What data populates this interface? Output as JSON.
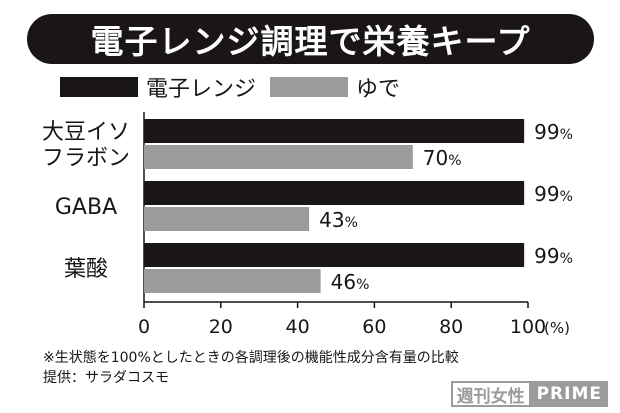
{
  "title": "電子レンジ調理で栄養キープ",
  "chart_data": {
    "type": "bar",
    "orientation": "horizontal",
    "categories": [
      [
        "大豆イソ",
        "フラボン"
      ],
      [
        "GABA"
      ],
      [
        "葉酸"
      ]
    ],
    "series": [
      {
        "name": "電子レンジ",
        "color": "#1a1516",
        "values": [
          99,
          99,
          99
        ]
      },
      {
        "name": "ゆで",
        "color": "#9b9b9b",
        "values": [
          70,
          43,
          46
        ]
      }
    ],
    "value_labels": [
      [
        "99",
        "70"
      ],
      [
        "99",
        "43"
      ],
      [
        "99",
        "46"
      ]
    ],
    "value_suffix": "%",
    "xlim": [
      0,
      100
    ],
    "xticks": [
      "0",
      "20",
      "40",
      "60",
      "80",
      "100"
    ],
    "xunit": "(%)",
    "legend_position": "top-left",
    "grid": false
  },
  "footnote": {
    "line1": "※生状態を100%としたときの各調理後の機能性成分含有量の比較",
    "line2": "提供：サラダコスモ"
  },
  "watermark": {
    "part1": "週刊女性",
    "part2": "PRIME"
  }
}
